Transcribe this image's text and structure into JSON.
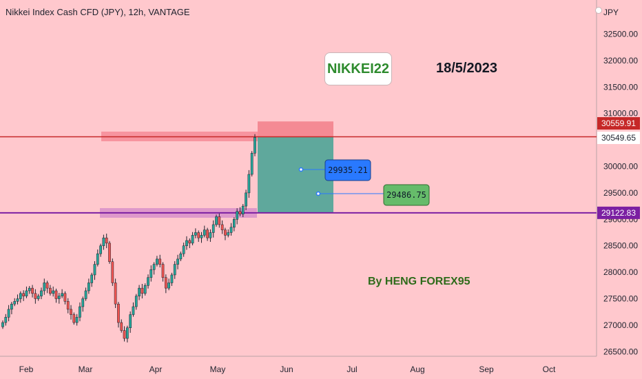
{
  "header": {
    "title": "Nikkei Index Cash CFD (JPY), 12h, VANTAGE"
  },
  "annotations": {
    "symbol_label": "NIKKEI22",
    "date_label": "18/5/2023",
    "author_label": "By HENG FOREX95",
    "target1_label": "29935.21",
    "target2_label": "29486.75"
  },
  "price_scale": {
    "currency": "JPY",
    "current_price_tag": "30559.91",
    "current_price_secondary": "30549.65",
    "support_tag": "29122.83"
  },
  "colors": {
    "background": "#ffc8cd",
    "resistance_line": "#c62828",
    "support_line": "#7b1fa2",
    "candle_up": "#26a69a",
    "candle_down": "#ef5350",
    "stop_zone": "#f48a94",
    "profit_zone": "#5fa89c",
    "target1_box": "#2979ff",
    "target2_box": "#66bb6a"
  },
  "chart_data": {
    "type": "candlestick",
    "title": "Nikkei Index Cash CFD (JPY), 12h, VANTAGE",
    "x_ticks": [
      "Feb",
      "Mar",
      "Apr",
      "May",
      "Jun",
      "Jul",
      "Aug",
      "Sep",
      "Oct"
    ],
    "y_ticks": [
      32500,
      32000,
      31500,
      31000,
      30500,
      30000,
      29500,
      29000,
      28500,
      28000,
      27500,
      27000,
      26500
    ],
    "ylim": [
      26500,
      33000
    ],
    "series_close": [
      27050,
      27150,
      27300,
      27400,
      27450,
      27500,
      27600,
      27550,
      27650,
      27700,
      27600,
      27500,
      27550,
      27650,
      27800,
      27700,
      27600,
      27650,
      27500,
      27550,
      27600,
      27450,
      27300,
      27200,
      27050,
      27150,
      27350,
      27500,
      27650,
      27800,
      27950,
      28150,
      28350,
      28500,
      28650,
      28550,
      28200,
      27800,
      27400,
      27050,
      26900,
      26750,
      26950,
      27200,
      27350,
      27550,
      27700,
      27600,
      27750,
      27900,
      28050,
      28150,
      28250,
      28150,
      27900,
      27700,
      27800,
      27950,
      28150,
      28250,
      28350,
      28500,
      28600,
      28550,
      28700,
      28750,
      28650,
      28700,
      28800,
      28650,
      28750,
      28900,
      29050,
      28900,
      28800,
      28700,
      28750,
      28850,
      29000,
      29150,
      29100,
      29250,
      29500,
      29850,
      30250,
      30550
    ],
    "resistance_level": 30559.91,
    "support_level": 29122.83,
    "targets": [
      29935.21,
      29486.75
    ],
    "stop_level": 30850
  }
}
